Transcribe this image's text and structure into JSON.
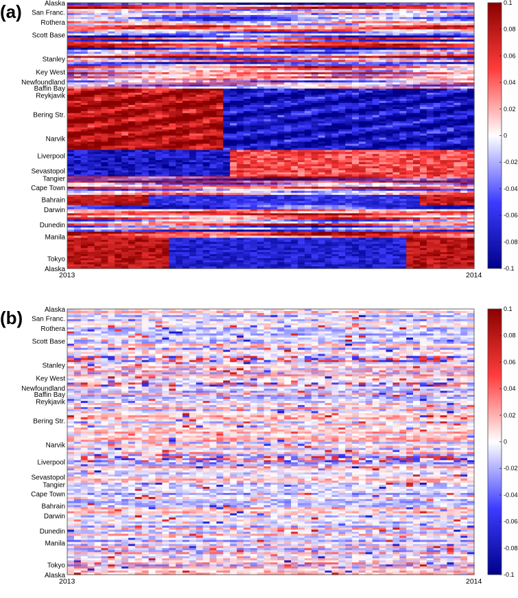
{
  "chart_data": [
    {
      "type": "heatmap",
      "panel_label": "(a)",
      "y_labels": [
        "Alaska",
        "San Franc.",
        "Rothera",
        "Scott Base",
        "Stanley",
        "Key West",
        "Newfoundland",
        "Baffin Bay",
        "Reykjavik",
        "Bering Str.",
        "Narvik",
        "Liverpool",
        "Sevastopol",
        "Tangier",
        "Cape Town",
        "Bahrain",
        "Darwin",
        "Dunedin",
        "Manila",
        "Tokyo",
        "Alaska"
      ],
      "x_labels": [
        "2013",
        "2014"
      ],
      "xlim": [
        "2013",
        "2014"
      ],
      "colorbar": {
        "ticks": [
          "0.1",
          "0.08",
          "0.06",
          "0.04",
          "0.02",
          "0",
          "-0.02",
          "-0.04",
          "-0.06",
          "-0.08",
          "-0.1"
        ],
        "range": [
          -0.1,
          0.1
        ],
        "colormap": "blue-white-red",
        "low_color": "#00008b",
        "mid_color": "#ffffff",
        "high_color": "#8b0000"
      },
      "intensity": "strong"
    },
    {
      "type": "heatmap",
      "panel_label": "(b)",
      "y_labels": [
        "Alaska",
        "San Franc.",
        "Rothera",
        "Scott Base",
        "Stanley",
        "Key West",
        "Newfoundland",
        "Baffin Bay",
        "Reykjavik",
        "Bering Str.",
        "Narvik",
        "Liverpool",
        "Sevastopol",
        "Tangier",
        "Cape Town",
        "Bahrain",
        "Darwin",
        "Dunedin",
        "Manila",
        "Tokyo",
        "Alaska"
      ],
      "x_labels": [
        "2013",
        "2014"
      ],
      "xlim": [
        "2013",
        "2014"
      ],
      "colorbar": {
        "ticks": [
          "0.1",
          "0.08",
          "0.06",
          "0.04",
          "0.02",
          "0",
          "-0.02",
          "-0.04",
          "-0.06",
          "-0.08",
          "-0.1"
        ],
        "range": [
          -0.1,
          0.1
        ],
        "colormap": "blue-white-red",
        "low_color": "#00008b",
        "mid_color": "#ffffff",
        "high_color": "#8b0000"
      },
      "intensity": "weak"
    }
  ]
}
